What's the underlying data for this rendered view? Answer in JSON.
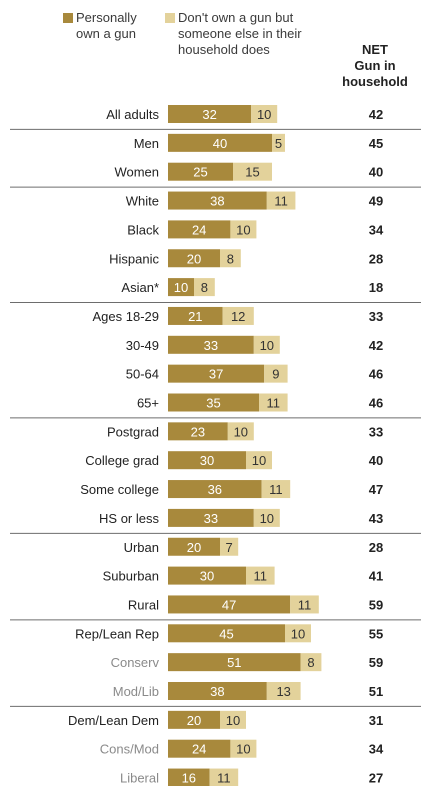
{
  "colors": {
    "personal": "#a8893c",
    "other": "#e3d29b",
    "divider": "#6d6d6d",
    "label_primary": "#222222",
    "label_secondary": "#8a8a8a",
    "value_on_dark": "#ffffff",
    "value_on_light": "#333333"
  },
  "legend": {
    "personal_label": "Personally\nown a gun",
    "other_label": "Don't own a gun but\nsomeone else in their\nhousehold does",
    "net_label": "NET\nGun in\nhousehold"
  },
  "chart_data": {
    "type": "bar",
    "stacked": true,
    "orientation": "horizontal",
    "series": [
      {
        "name": "Personally own a gun",
        "values": [
          32,
          40,
          25,
          38,
          24,
          20,
          10,
          21,
          33,
          37,
          35,
          23,
          30,
          36,
          33,
          20,
          30,
          47,
          45,
          51,
          38,
          20,
          24,
          16
        ]
      },
      {
        "name": "Don't own a gun but someone else in their household does",
        "values": [
          10,
          5,
          15,
          11,
          10,
          8,
          8,
          12,
          10,
          9,
          11,
          10,
          10,
          11,
          10,
          7,
          11,
          11,
          10,
          8,
          13,
          10,
          10,
          11
        ]
      }
    ],
    "rows": [
      {
        "label": "All adults",
        "personal": 32,
        "other": 10,
        "net": 42,
        "sub": false,
        "group": 0
      },
      {
        "label": "Men",
        "personal": 40,
        "other": 5,
        "net": 45,
        "sub": false,
        "group": 1
      },
      {
        "label": "Women",
        "personal": 25,
        "other": 15,
        "net": 40,
        "sub": false,
        "group": 1
      },
      {
        "label": "White",
        "personal": 38,
        "other": 11,
        "net": 49,
        "sub": false,
        "group": 2
      },
      {
        "label": "Black",
        "personal": 24,
        "other": 10,
        "net": 34,
        "sub": false,
        "group": 2
      },
      {
        "label": "Hispanic",
        "personal": 20,
        "other": 8,
        "net": 28,
        "sub": false,
        "group": 2
      },
      {
        "label": "Asian*",
        "personal": 10,
        "other": 8,
        "net": 18,
        "sub": false,
        "group": 2
      },
      {
        "label": "Ages 18-29",
        "personal": 21,
        "other": 12,
        "net": 33,
        "sub": false,
        "group": 3
      },
      {
        "label": "30-49",
        "personal": 33,
        "other": 10,
        "net": 42,
        "sub": false,
        "group": 3
      },
      {
        "label": "50-64",
        "personal": 37,
        "other": 9,
        "net": 46,
        "sub": false,
        "group": 3
      },
      {
        "label": "65+",
        "personal": 35,
        "other": 11,
        "net": 46,
        "sub": false,
        "group": 3
      },
      {
        "label": "Postgrad",
        "personal": 23,
        "other": 10,
        "net": 33,
        "sub": false,
        "group": 4
      },
      {
        "label": "College grad",
        "personal": 30,
        "other": 10,
        "net": 40,
        "sub": false,
        "group": 4
      },
      {
        "label": "Some college",
        "personal": 36,
        "other": 11,
        "net": 47,
        "sub": false,
        "group": 4
      },
      {
        "label": "HS or less",
        "personal": 33,
        "other": 10,
        "net": 43,
        "sub": false,
        "group": 4
      },
      {
        "label": "Urban",
        "personal": 20,
        "other": 7,
        "net": 28,
        "sub": false,
        "group": 5
      },
      {
        "label": "Suburban",
        "personal": 30,
        "other": 11,
        "net": 41,
        "sub": false,
        "group": 5
      },
      {
        "label": "Rural",
        "personal": 47,
        "other": 11,
        "net": 59,
        "sub": false,
        "group": 5
      },
      {
        "label": "Rep/Lean Rep",
        "personal": 45,
        "other": 10,
        "net": 55,
        "sub": false,
        "group": 6
      },
      {
        "label": "Conserv",
        "personal": 51,
        "other": 8,
        "net": 59,
        "sub": true,
        "group": 6
      },
      {
        "label": "Mod/Lib",
        "personal": 38,
        "other": 13,
        "net": 51,
        "sub": true,
        "group": 6
      },
      {
        "label": "Dem/Lean Dem",
        "personal": 20,
        "other": 10,
        "net": 31,
        "sub": false,
        "group": 7
      },
      {
        "label": "Cons/Mod",
        "personal": 24,
        "other": 10,
        "net": 34,
        "sub": true,
        "group": 7
      },
      {
        "label": "Liberal",
        "personal": 16,
        "other": 11,
        "net": 27,
        "sub": true,
        "group": 7
      }
    ]
  }
}
